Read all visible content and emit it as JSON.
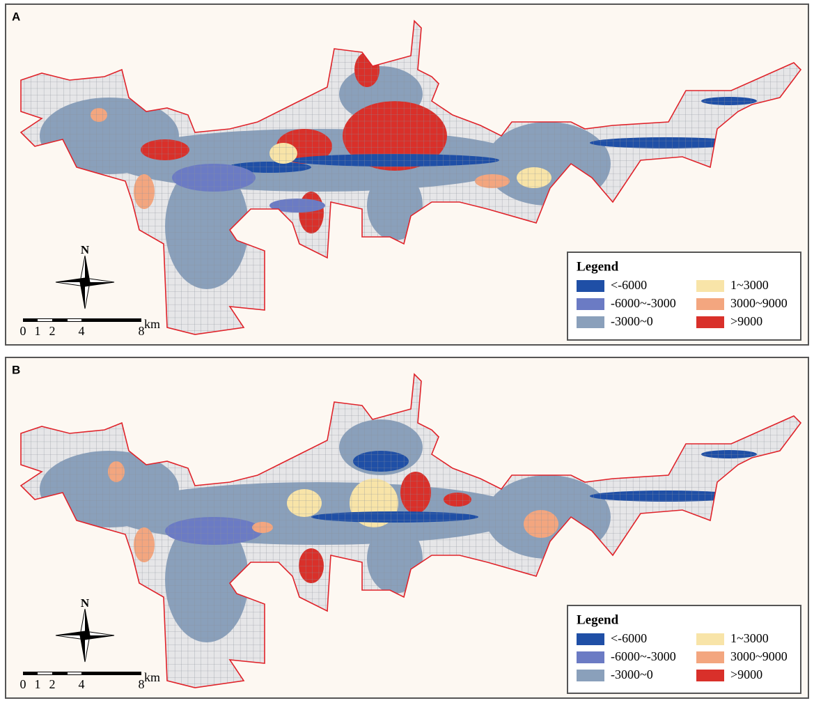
{
  "panels": [
    {
      "label": "A",
      "legend": {
        "title": "Legend",
        "items": [
          {
            "label": "<-6000",
            "color": "#1f4fa6"
          },
          {
            "label": "-6000~-3000",
            "color": "#6b7bc4"
          },
          {
            "label": "-3000~0",
            "color": "#8aa0bb"
          },
          {
            "label": "1~3000",
            "color": "#f8e4a8"
          },
          {
            "label": "3000~9000",
            "color": "#f3a67f"
          },
          {
            "label": ">9000",
            "color": "#d9302a"
          }
        ]
      },
      "north": "N",
      "scale": {
        "labels": [
          "0",
          "1",
          "2",
          "4",
          "8"
        ],
        "unit": "km"
      }
    },
    {
      "label": "B",
      "legend": {
        "title": "Legend",
        "items": [
          {
            "label": "<-6000",
            "color": "#1f4fa6"
          },
          {
            "label": "-6000~-3000",
            "color": "#6b7bc4"
          },
          {
            "label": "-3000~0",
            "color": "#8aa0bb"
          },
          {
            "label": "1~3000",
            "color": "#f8e4a8"
          },
          {
            "label": "3000~9000",
            "color": "#f3a67f"
          },
          {
            "label": ">9000",
            "color": "#d9302a"
          }
        ]
      },
      "north": "N",
      "scale": {
        "labels": [
          "0",
          "1",
          "2",
          "4",
          "8"
        ],
        "unit": "km"
      }
    }
  ]
}
